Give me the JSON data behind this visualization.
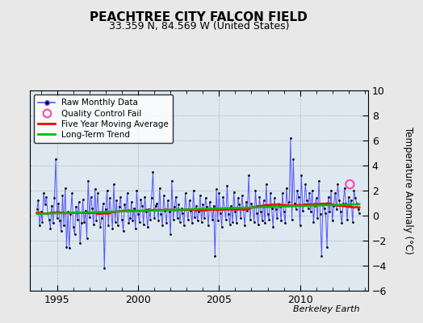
{
  "title": "PEACHTREE CITY FALCON FIELD",
  "subtitle": "33.359 N, 84.569 W (United States)",
  "ylabel": "Temperature Anomaly (°C)",
  "watermark": "Berkeley Earth",
  "ylim": [
    -6,
    10
  ],
  "yticks": [
    -6,
    -4,
    -2,
    0,
    2,
    4,
    6,
    8,
    10
  ],
  "xlim_start": 1993.3,
  "xlim_end": 2014.2,
  "background_color": "#e8e8e8",
  "plot_bg_color": "#dde8f0",
  "raw_color": "#5555ff",
  "ma_color": "#ff0000",
  "trend_color": "#00bb00",
  "qc_color": "#ff44aa",
  "start_year": 1993.75,
  "qc_fail_x": [
    2013.08
  ],
  "qc_fail_y": [
    2.5
  ],
  "raw_monthly": [
    0.5,
    1.2,
    -0.8,
    0.3,
    -0.5,
    1.8,
    0.9,
    1.5,
    0.2,
    -0.3,
    -1.0,
    0.8,
    -0.6,
    1.4,
    4.5,
    -0.2,
    1.0,
    -0.4,
    -1.2,
    1.6,
    -0.8,
    2.2,
    -2.5,
    0.3,
    -2.6,
    0.1,
    1.8,
    -0.9,
    -1.5,
    0.7,
    -0.3,
    1.1,
    -2.2,
    -0.6,
    1.3,
    -0.5,
    0.4,
    -1.8,
    2.8,
    -0.1,
    1.5,
    0.6,
    -0.7,
    2.1,
    -0.4,
    1.8,
    0.2,
    -0.9,
    -0.2,
    1.0,
    -4.2,
    0.5,
    2.0,
    -0.8,
    1.4,
    0.3,
    -1.0,
    2.5,
    -0.5,
    1.2,
    -0.8,
    0.7,
    1.5,
    -0.3,
    -1.2,
    0.9,
    0.4,
    1.8,
    -0.6,
    -0.2,
    1.1,
    -0.4,
    0.6,
    -1.0,
    2.0,
    0.1,
    -0.5,
    1.3,
    0.8,
    -0.7,
    1.5,
    0.3,
    -0.9,
    0.5,
    -0.3,
    1.4,
    3.5,
    -0.2,
    0.8,
    1.0,
    -0.4,
    2.2,
    0.1,
    -0.8,
    1.6,
    0.4,
    -0.6,
    1.2,
    0.3,
    -1.5,
    2.8,
    -0.3,
    0.7,
    1.5,
    -0.2,
    0.9,
    -0.5,
    0.6,
    0.2,
    -0.8,
    1.8,
    0.5,
    -0.3,
    1.2,
    0.4,
    -0.6,
    2.0,
    -0.1,
    0.8,
    -0.4,
    0.3,
    1.6,
    -0.5,
    0.9,
    -0.2,
    1.4,
    0.7,
    -0.8,
    1.1,
    0.5,
    -0.3,
    0.8,
    -3.2,
    2.1,
    -0.4,
    1.8,
    0.2,
    -0.9,
    1.5,
    0.6,
    -0.3,
    2.4,
    0.1,
    -0.7,
    0.8,
    -0.5,
    1.9,
    0.3,
    -0.6,
    1.4,
    0.9,
    -0.2,
    1.6,
    0.5,
    -0.8,
    1.1,
    0.4,
    3.2,
    -0.3,
    1.0,
    0.7,
    -0.5,
    2.0,
    0.2,
    -0.7,
    1.5,
    0.3,
    -0.4,
    1.2,
    -0.6,
    2.5,
    0.1,
    -0.3,
    1.8,
    0.6,
    -0.9,
    1.4,
    0.5,
    -0.2,
    0.9,
    0.7,
    -0.4,
    1.8,
    0.3,
    -0.6,
    2.2,
    0.8,
    1.1,
    6.2,
    -0.3,
    4.5,
    1.0,
    0.5,
    2.0,
    1.5,
    -0.8,
    3.2,
    0.4,
    0.9,
    2.5,
    1.2,
    0.6,
    1.8,
    0.3,
    2.0,
    -0.5,
    0.8,
    1.4,
    -0.2,
    2.8,
    0.1,
    -3.2,
    1.0,
    0.6,
    0.2,
    -2.5,
    1.5,
    0.3,
    2.0,
    -0.4,
    0.8,
    1.8,
    0.5,
    2.5,
    1.2,
    0.3,
    -0.6,
    1.0,
    2.2,
    1.0,
    -0.3,
    1.5,
    0.8,
    1.2,
    -0.5,
    2.0,
    1.4,
    1.0,
    0.5,
    0.2
  ]
}
